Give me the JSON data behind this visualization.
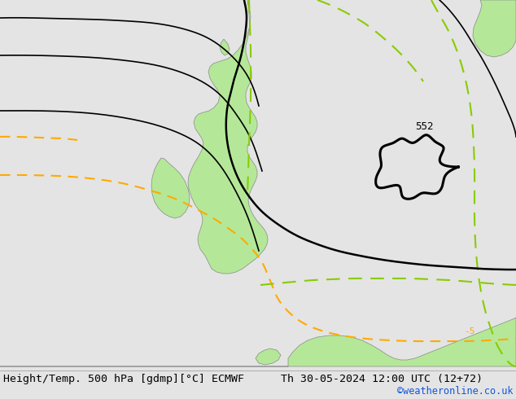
{
  "title_left": "Height/Temp. 500 hPa [gdmp][°C] ECMWF",
  "title_right": "Th 30-05-2024 12:00 UTC (12+72)",
  "credit": "©weatheronline.co.uk",
  "bg_color": "#e4e4e4",
  "land_color": "#b4e898",
  "border_color": "#888888",
  "black_color": "#000000",
  "orange_color": "#ffaa00",
  "green_color": "#88cc00",
  "title_fontsize": 9.5,
  "credit_fontsize": 8.5,
  "font_family": "monospace",
  "label_552": "552"
}
